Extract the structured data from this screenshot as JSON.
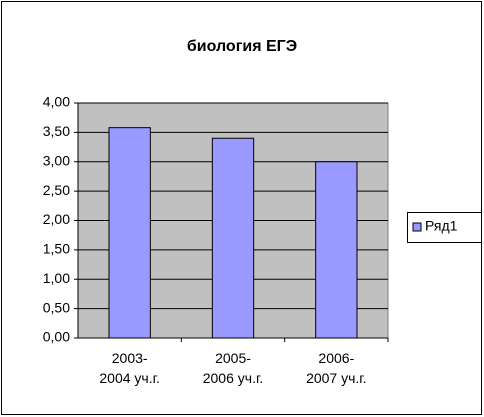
{
  "chart_data": {
    "type": "bar",
    "title": "биология ЕГЭ",
    "categories": [
      "2003-\n2004 уч.г.",
      "2005-\n2006 уч.г.",
      "2006-\n2007 уч.г."
    ],
    "series": [
      {
        "name": "Ряд1",
        "color": "#9999ff",
        "values": [
          3.58,
          3.4,
          3.0
        ]
      }
    ],
    "ylim": [
      0,
      4
    ],
    "yticks": [
      {
        "value": 0,
        "label": "0,00"
      },
      {
        "value": 0.5,
        "label": "0,50"
      },
      {
        "value": 1,
        "label": "1,00"
      },
      {
        "value": 1.5,
        "label": "1,50"
      },
      {
        "value": 2,
        "label": "2,00"
      },
      {
        "value": 2.5,
        "label": "2,50"
      },
      {
        "value": 3,
        "label": "3,00"
      },
      {
        "value": 3.5,
        "label": "3,50"
      },
      {
        "value": 4,
        "label": "4,00"
      }
    ],
    "grid": true,
    "legend": "right"
  }
}
